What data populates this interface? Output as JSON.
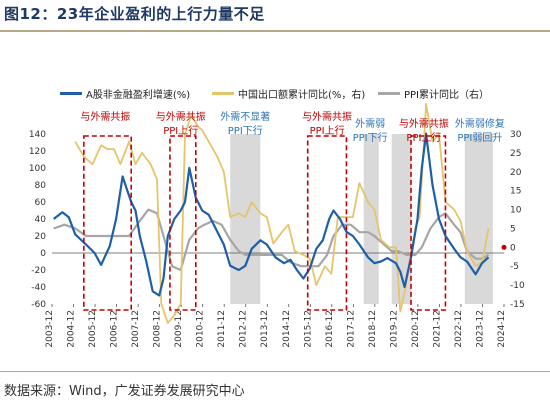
{
  "page": {
    "title": "图12：23年企业盈利的上行力量不足",
    "source": "数据来源：Wind，广发证券发展研究中心"
  },
  "colors": {
    "profit": "#1f5fa8",
    "export": "#e6c46a",
    "ppi": "#a6a6a6",
    "box_red": "#c00000",
    "shade": "#d9d9d9",
    "anno_red": "#c00000",
    "anno_blue": "#2e75b6",
    "title": "#1f3864"
  },
  "chart_data": {
    "type": "line",
    "x_ticks": [
      "2003-12",
      "2004-12",
      "2005-12",
      "2006-12",
      "2007-12",
      "2008-12",
      "2009-12",
      "2010-12",
      "2011-12",
      "2012-12",
      "2013-12",
      "2014-12",
      "2015-12",
      "2016-12",
      "2017-12",
      "2018-12",
      "2019-12",
      "2020-12",
      "2021-12",
      "2022-12",
      "2023-12",
      "2024-12"
    ],
    "y_left": {
      "min": -60,
      "max": 140,
      "ticks": [
        -60,
        -40,
        -20,
        0,
        20,
        40,
        60,
        80,
        100,
        120,
        140
      ]
    },
    "y_right": {
      "min": -15,
      "max": 30,
      "ticks": [
        -15,
        -10,
        -5,
        0,
        5,
        10,
        15,
        20,
        25,
        30
      ]
    },
    "series": [
      {
        "name": "A股非金融盈利增速(%)",
        "axis": "left",
        "x": [
          2004.0,
          2004.4,
          2004.7,
          2005.0,
          2005.5,
          2005.9,
          2006.2,
          2006.6,
          2006.9,
          2007.2,
          2007.6,
          2007.8,
          2008.0,
          2008.3,
          2008.6,
          2008.9,
          2009.1,
          2009.3,
          2009.6,
          2009.9,
          2010.1,
          2010.3,
          2010.6,
          2010.9,
          2011.2,
          2011.6,
          2011.9,
          2012.2,
          2012.6,
          2012.9,
          2013.2,
          2013.6,
          2013.9,
          2014.3,
          2014.7,
          2015.0,
          2015.3,
          2015.6,
          2015.9,
          2016.2,
          2016.5,
          2016.8,
          2017.0,
          2017.3,
          2017.6,
          2017.9,
          2018.2,
          2018.6,
          2018.9,
          2019.2,
          2019.5,
          2019.9,
          2020.1,
          2020.3,
          2020.6,
          2020.9,
          2021.1,
          2021.3,
          2021.6,
          2021.9,
          2022.2,
          2022.6,
          2022.9,
          2023.2,
          2023.6,
          2023.9,
          2024.2
        ],
        "values": [
          40,
          48,
          42,
          22,
          10,
          0,
          -14,
          8,
          40,
          90,
          60,
          50,
          20,
          -10,
          -45,
          -50,
          -30,
          20,
          40,
          50,
          60,
          100,
          65,
          50,
          45,
          25,
          10,
          -15,
          -20,
          -15,
          5,
          15,
          10,
          -5,
          -12,
          -8,
          -20,
          -30,
          -18,
          5,
          15,
          40,
          50,
          40,
          25,
          20,
          10,
          -5,
          -12,
          -10,
          -6,
          -12,
          -22,
          -40,
          -5,
          40,
          100,
          140,
          80,
          40,
          20,
          5,
          -5,
          -10,
          -25,
          -12,
          -5
        ]
      },
      {
        "name": "中国出口额累计同比(%，右)",
        "axis": "right",
        "x": [
          2005.0,
          2005.4,
          2005.8,
          2006.2,
          2006.5,
          2006.8,
          2007.1,
          2007.5,
          2007.8,
          2008.1,
          2008.5,
          2008.8,
          2009.0,
          2009.3,
          2009.6,
          2009.9,
          2010.1,
          2010.4,
          2010.7,
          2010.9,
          2011.2,
          2011.6,
          2011.9,
          2012.2,
          2012.6,
          2012.9,
          2013.2,
          2013.6,
          2013.9,
          2014.2,
          2014.6,
          2014.9,
          2015.2,
          2015.6,
          2015.9,
          2016.2,
          2016.6,
          2016.9,
          2017.2,
          2017.6,
          2017.9,
          2018.2,
          2018.6,
          2018.9,
          2019.2,
          2019.6,
          2019.9,
          2020.1,
          2020.3,
          2020.5,
          2020.8,
          2021.0,
          2021.3,
          2021.6,
          2021.9,
          2022.2,
          2022.6,
          2022.9,
          2023.2,
          2023.6,
          2023.9,
          2024.2
        ],
        "values": [
          28,
          24,
          22,
          27,
          26,
          26,
          22,
          28,
          22,
          25,
          22,
          18,
          -15,
          -20,
          -18,
          -15,
          30,
          35,
          32,
          31,
          28,
          24,
          20,
          8,
          9,
          8,
          12,
          9,
          8,
          1,
          4,
          6,
          -1,
          -2,
          -3,
          -10,
          -5,
          -7,
          8,
          8,
          8,
          17,
          12,
          10,
          2,
          0,
          0,
          -17,
          -12,
          -5,
          5,
          8,
          38,
          28,
          30,
          12,
          10,
          7,
          -1,
          -5,
          -4,
          5
        ]
      },
      {
        "name": "PPI累计同比（右）",
        "axis": "right",
        "x": [
          2004.0,
          2004.5,
          2005.0,
          2005.5,
          2006.0,
          2006.5,
          2007.0,
          2007.5,
          2008.0,
          2008.4,
          2008.8,
          2009.1,
          2009.5,
          2009.9,
          2010.3,
          2010.7,
          2011.0,
          2011.4,
          2011.8,
          2012.2,
          2012.6,
          2012.9,
          2013.3,
          2013.7,
          2014.1,
          2014.6,
          2015.0,
          2015.5,
          2015.9,
          2016.3,
          2016.7,
          2017.0,
          2017.4,
          2017.8,
          2018.2,
          2018.6,
          2018.9,
          2019.3,
          2019.7,
          2020.0,
          2020.4,
          2020.8,
          2021.1,
          2021.5,
          2021.9,
          2022.2,
          2022.6,
          2022.9,
          2023.2,
          2023.6,
          2023.9,
          2024.2
        ],
        "values": [
          5,
          6,
          5,
          3,
          3,
          3,
          3,
          3,
          7,
          10,
          9,
          3,
          -5,
          -6,
          2,
          5,
          6,
          7,
          6,
          2,
          -1,
          -2,
          -2,
          -2,
          -2,
          -2,
          -4,
          -5,
          -5,
          -5,
          -2,
          3,
          6,
          6,
          4,
          4,
          3,
          1,
          -1,
          -1,
          -2,
          -2,
          0,
          5,
          8,
          9,
          6,
          4,
          -1,
          -3,
          -3,
          -2
        ]
      }
    ],
    "shaded_regions": [
      {
        "x0": 2012.2,
        "x1": 2013.6
      },
      {
        "x0": 2018.4,
        "x1": 2019.1
      },
      {
        "x0": 2019.7,
        "x1": 2020.6
      },
      {
        "x0": 2023.1,
        "x1": 2024.4
      }
    ],
    "boxes": [
      {
        "x0": 2005.4,
        "x1": 2007.6
      },
      {
        "x0": 2009.4,
        "x1": 2010.6
      },
      {
        "x0": 2015.8,
        "x1": 2017.6
      },
      {
        "x0": 2020.6,
        "x1": 2022.2
      }
    ],
    "annotations": [
      {
        "lines": [
          "与外需共振"
        ],
        "color": "red",
        "x": 2006.4,
        "row": 0
      },
      {
        "lines": [
          "与外需共振",
          "PPI上行"
        ],
        "color": "red",
        "x": 2009.9,
        "row": 0
      },
      {
        "lines": [
          "外需不显著",
          "PPI下行"
        ],
        "color": "blue",
        "x": 2012.9,
        "row": 0
      },
      {
        "lines": [
          "与外需共振",
          "PPI上行"
        ],
        "color": "red",
        "x": 2016.7,
        "row": 0
      },
      {
        "lines": [
          "外需弱",
          "PPI下行"
        ],
        "color": "blue",
        "x": 2018.7,
        "row": 1
      },
      {
        "lines": [
          "与外需共振",
          "PPI上行"
        ],
        "color": "red",
        "x": 2021.2,
        "row": 1
      },
      {
        "lines": [
          "外需弱修复",
          "PPI弱回升"
        ],
        "color": "blue",
        "x": 2023.8,
        "row": 1
      }
    ]
  }
}
